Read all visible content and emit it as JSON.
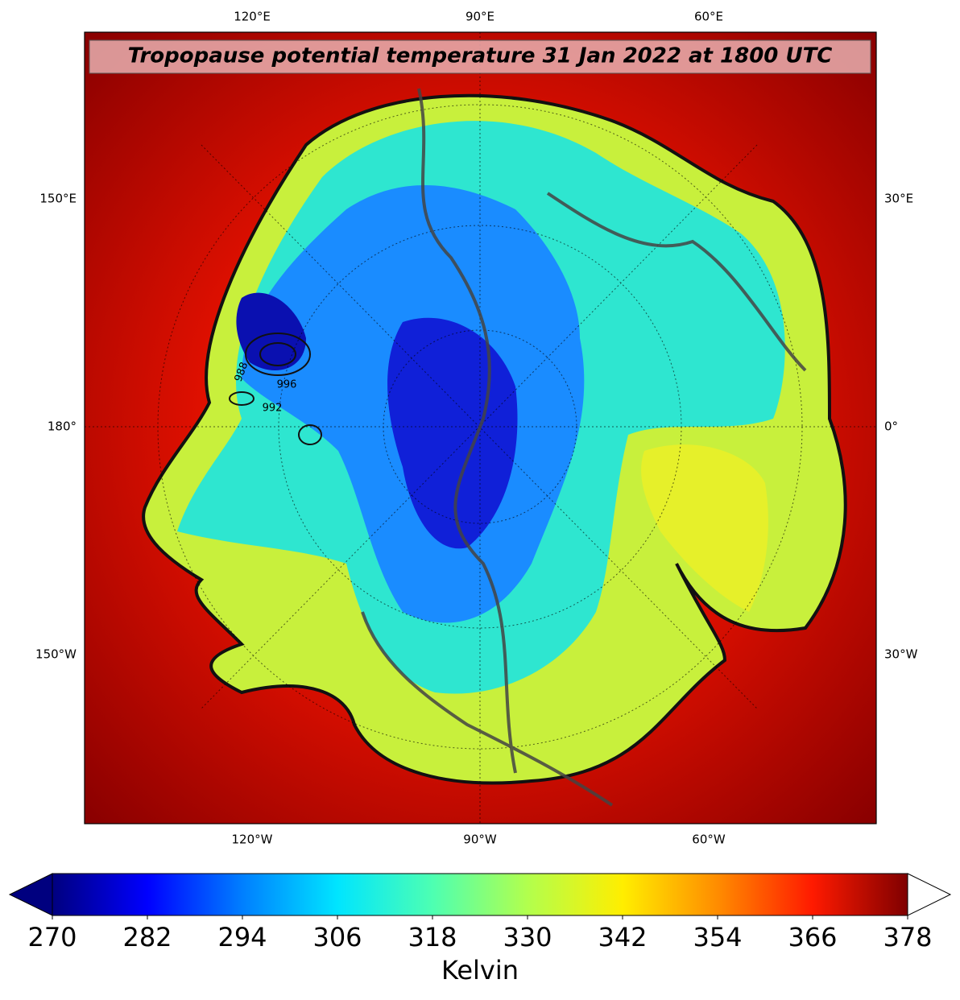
{
  "title": "Tropopause potential temperature 31 Jan 2022 at 1800 UTC",
  "map": {
    "lon_labels_top": [
      "120°E",
      "90°E",
      "60°E"
    ],
    "lon_labels_bottom": [
      "120°W",
      "90°W",
      "60°W"
    ],
    "lon_labels_left": [
      "150°E",
      "180°",
      "150°W"
    ],
    "lon_labels_right": [
      "30°E",
      "0°",
      "30°W"
    ],
    "contour_labels": [
      "988",
      "996",
      "992"
    ]
  },
  "colorbar": {
    "label": "Kelvin",
    "range": [
      270,
      378
    ],
    "ticks": [
      270,
      282,
      294,
      306,
      318,
      330,
      342,
      354,
      366,
      378
    ],
    "colors": [
      "#00007f",
      "#0000ff",
      "#007fff",
      "#00e5ff",
      "#4dffb2",
      "#b2ff4d",
      "#ffee00",
      "#ff8c00",
      "#ff1a00",
      "#7f0000"
    ],
    "under_color": "#00007f",
    "over_color": "#ffffff"
  }
}
